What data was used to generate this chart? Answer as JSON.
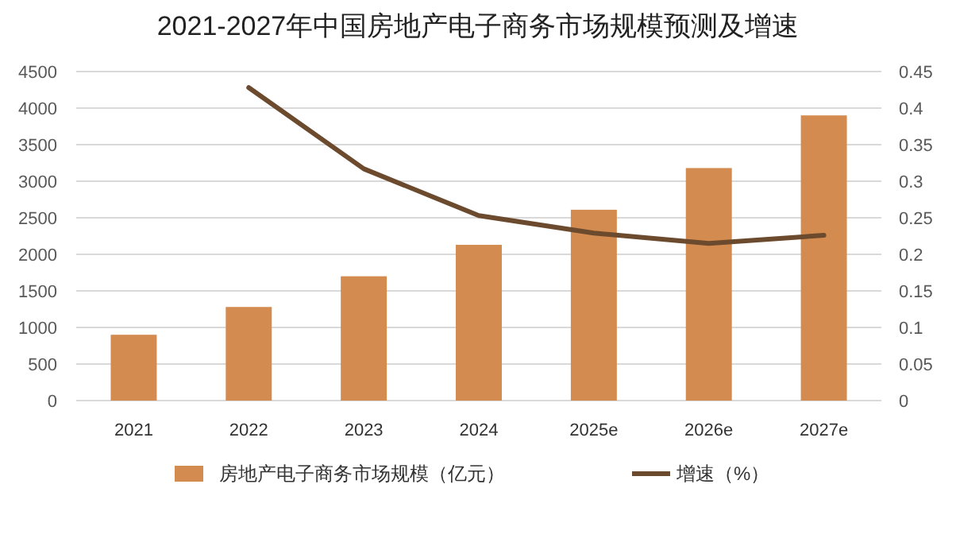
{
  "chart_data": {
    "type": "bar",
    "title": "2021-2027年中国房地产电子商务市场规模预测及增速",
    "categories": [
      "2021",
      "2022",
      "2023",
      "2024",
      "2025e",
      "2026e",
      "2027e"
    ],
    "series": [
      {
        "name": "房地产电子商务市场规模（亿元）",
        "color": "#d38b4f",
        "values": [
          900,
          1280,
          1700,
          2130,
          2610,
          3180,
          3900
        ]
      },
      {
        "name": "增速（%）",
        "type": "line",
        "axis": "y2",
        "color": "#6b4a2e",
        "values": [
          null,
          0.428,
          0.317,
          0.253,
          0.229,
          0.215,
          0.226
        ]
      }
    ],
    "ylim": [
      0,
      4500
    ],
    "yticks": [
      0,
      500,
      1000,
      1500,
      2000,
      2500,
      3000,
      3500,
      4000,
      4500
    ],
    "y2lim": [
      0,
      0.45
    ],
    "y2ticks": [
      0,
      0.05,
      0.1,
      0.15,
      0.2,
      0.25,
      0.3,
      0.35,
      0.4,
      0.45
    ],
    "grid": "y",
    "legend": "bottom",
    "marker": "none",
    "line_style": "solid"
  }
}
